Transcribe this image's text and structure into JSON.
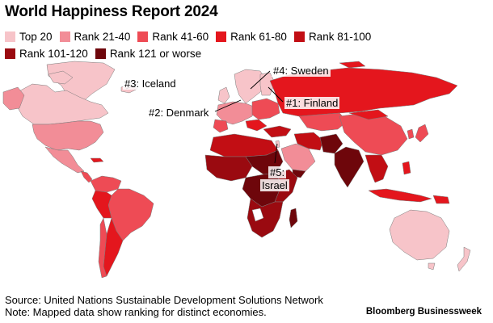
{
  "title": "World Happiness Report 2024",
  "legend": [
    {
      "label": "Top 20",
      "color": "#f7c4c9"
    },
    {
      "label": "Rank 21-40",
      "color": "#f28d97"
    },
    {
      "label": "Rank 41-60",
      "color": "#ee4b55"
    },
    {
      "label": "Rank 61-80",
      "color": "#e4161d"
    },
    {
      "label": "Rank 81-100",
      "color": "#c20e14"
    },
    {
      "label": "Rank 101-120",
      "color": "#9a0a10"
    },
    {
      "label": "Rank 121 or worse",
      "color": "#6e060b"
    }
  ],
  "callouts": {
    "finland": "#1: Finland",
    "denmark": "#2: Denmark",
    "iceland": "#3: Iceland",
    "sweden": "#4: Sweden",
    "israel_rank": "#5:",
    "israel_name": "Israel"
  },
  "footer": {
    "source": "Source: United Nations Sustainable Development Solutions Network",
    "note": "Note: Mapped data show ranking for distinct economies."
  },
  "brand": "Bloomberg Businessweek",
  "colors": {
    "top20": "#f7c4c9",
    "r21_40": "#f28d97",
    "r41_60": "#ee4b55",
    "r61_80": "#e4161d",
    "r81_100": "#c20e14",
    "r101_120": "#9a0a10",
    "r121_plus": "#6e060b",
    "no_data": "#ffffff",
    "border": "#7a7a7a"
  }
}
